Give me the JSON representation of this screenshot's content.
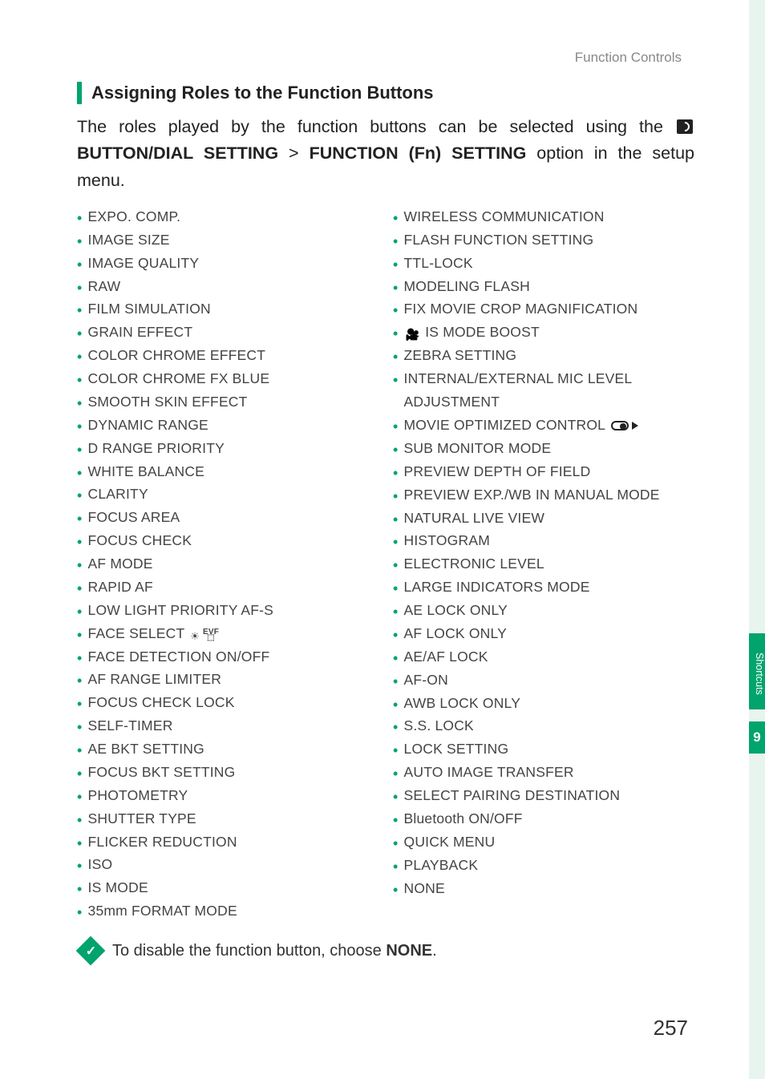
{
  "colors": {
    "accent": "#00a46c",
    "text": "#333333",
    "muted": "#888888",
    "sidebar_bg": "#e8f5ef"
  },
  "header": {
    "section": "Function Controls"
  },
  "sidebar": {
    "tab_label": "Shortcuts",
    "chapter": "9"
  },
  "heading": "Assigning Roles to the Function Buttons",
  "intro": {
    "pre": "The roles played by the function buttons can be selected using the ",
    "path1": "BUTTON/DIAL SETTING",
    "sep": " > ",
    "path2": "FUNCTION (Fn) SETTING",
    "post": " option in the setup menu."
  },
  "columns": {
    "left": [
      {
        "label": "EXPO. COMP."
      },
      {
        "label": "IMAGE SIZE"
      },
      {
        "label": "IMAGE QUALITY"
      },
      {
        "label": "RAW"
      },
      {
        "label": "FILM SIMULATION"
      },
      {
        "label": "GRAIN EFFECT"
      },
      {
        "label": "COLOR CHROME EFFECT"
      },
      {
        "label": "COLOR CHROME FX BLUE"
      },
      {
        "label": "SMOOTH SKIN EFFECT"
      },
      {
        "label": "DYNAMIC RANGE"
      },
      {
        "label": "D RANGE PRIORITY"
      },
      {
        "label": "WHITE BALANCE"
      },
      {
        "label": "CLARITY"
      },
      {
        "label": "FOCUS AREA"
      },
      {
        "label": "FOCUS CHECK"
      },
      {
        "label": "AF MODE"
      },
      {
        "label": "RAPID AF"
      },
      {
        "label": "LOW LIGHT PRIORITY AF-S"
      },
      {
        "label": "FACE SELECT",
        "suffix_icons": [
          "target",
          "evf"
        ]
      },
      {
        "label": "FACE DETECTION ON/OFF"
      },
      {
        "label": "AF RANGE LIMITER"
      },
      {
        "label": "FOCUS CHECK LOCK"
      },
      {
        "label": "SELF-TIMER"
      },
      {
        "label": "AE BKT SETTING"
      },
      {
        "label": "FOCUS BKT SETTING"
      },
      {
        "label": "PHOTOMETRY"
      },
      {
        "label": "SHUTTER TYPE"
      },
      {
        "label": "FLICKER REDUCTION"
      },
      {
        "label": "ISO"
      },
      {
        "label": "IS MODE"
      },
      {
        "label": "35mm FORMAT MODE"
      }
    ],
    "right": [
      {
        "label": "WIRELESS COMMUNICATION"
      },
      {
        "label": "FLASH FUNCTION SETTING"
      },
      {
        "label": "TTL-LOCK"
      },
      {
        "label": "MODELING FLASH"
      },
      {
        "label": "FIX MOVIE CROP MAGNIFICATION"
      },
      {
        "label": "IS MODE BOOST",
        "prefix_icons": [
          "camera"
        ]
      },
      {
        "label": "ZEBRA SETTING"
      },
      {
        "label": "INTERNAL/EXTERNAL MIC LEVEL ADJUSTMENT"
      },
      {
        "label": "MOVIE OPTIMIZED CONTROL",
        "suffix_icons": [
          "switch",
          "play"
        ]
      },
      {
        "label": "SUB MONITOR MODE"
      },
      {
        "label": "PREVIEW DEPTH OF FIELD"
      },
      {
        "label": "PREVIEW EXP./WB IN MANUAL MODE"
      },
      {
        "label": "NATURAL LIVE VIEW"
      },
      {
        "label": "HISTOGRAM"
      },
      {
        "label": "ELECTRONIC LEVEL"
      },
      {
        "label": "LARGE INDICATORS MODE"
      },
      {
        "label": "AE LOCK ONLY"
      },
      {
        "label": "AF LOCK ONLY"
      },
      {
        "label": "AE/AF LOCK"
      },
      {
        "label": "AF-ON"
      },
      {
        "label": "AWB LOCK ONLY"
      },
      {
        "label": "S.S. LOCK"
      },
      {
        "label": "LOCK SETTING"
      },
      {
        "label": "AUTO IMAGE TRANSFER"
      },
      {
        "label": "SELECT PAIRING DESTINATION"
      },
      {
        "label": "Bluetooth ON/OFF"
      },
      {
        "label": "QUICK MENU"
      },
      {
        "label": "PLAYBACK"
      },
      {
        "label": "NONE"
      }
    ]
  },
  "note": {
    "pre": "To disable the function button, choose ",
    "bold": "NONE",
    "post": "."
  },
  "page_number": "257"
}
